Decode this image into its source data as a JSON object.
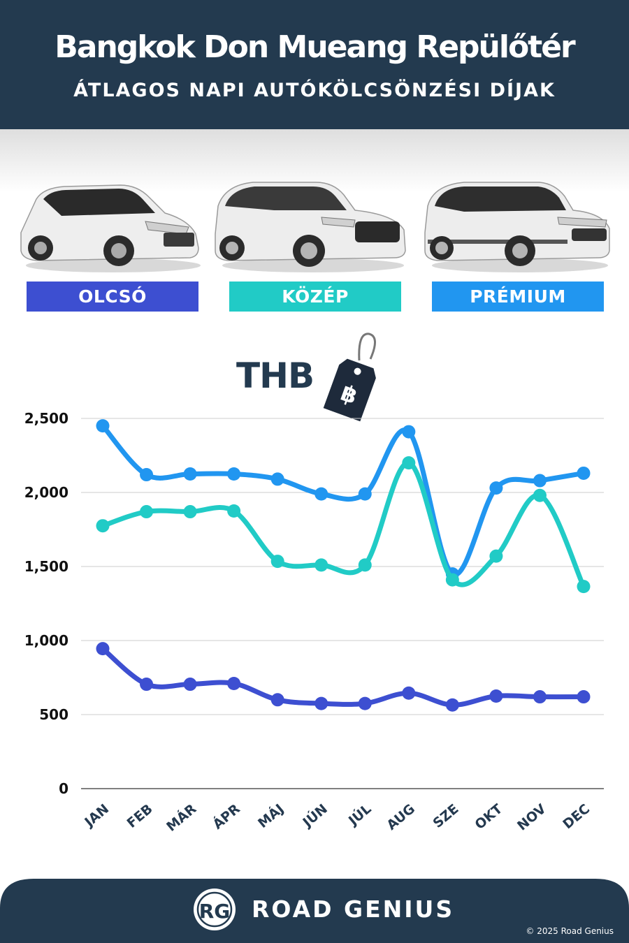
{
  "header": {
    "title": "Bangkok Don Mueang Repülőtér",
    "subtitle": "ÁTLAGOS NAPI AUTÓKÖLCSÖNZÉSI DÍJAK"
  },
  "categories": [
    {
      "label": "OLCSÓ",
      "color": "#3d4fd1"
    },
    {
      "label": "KÖZÉP",
      "color": "#21cbc6"
    },
    {
      "label": "PRÉMIUM",
      "color": "#2196f0"
    }
  ],
  "currency_label": "THB",
  "currency_symbol": "฿",
  "chart_data": {
    "type": "line",
    "categories": [
      "JAN",
      "FEB",
      "MÁR",
      "ÁPR",
      "MÁJ",
      "JÚN",
      "JÚL",
      "AUG",
      "SZE",
      "OKT",
      "NOV",
      "DEC"
    ],
    "series": [
      {
        "name": "PRÉMIUM",
        "color": "#2196f0",
        "values": [
          2450,
          2120,
          2125,
          2125,
          2090,
          1990,
          1990,
          2410,
          1450,
          2030,
          2080,
          2130
        ]
      },
      {
        "name": "KÖZÉP",
        "color": "#21cbc6",
        "values": [
          1775,
          1870,
          1870,
          1875,
          1535,
          1510,
          1510,
          2200,
          1410,
          1570,
          1980,
          1365
        ]
      },
      {
        "name": "OLCSÓ",
        "color": "#3d4fd1",
        "values": [
          945,
          705,
          705,
          710,
          600,
          575,
          575,
          645,
          565,
          625,
          620,
          620
        ]
      }
    ],
    "yticks": [
      "0",
      "500",
      "1,000",
      "1,500",
      "2,000",
      "2,500"
    ],
    "ylim": [
      0,
      2500
    ],
    "grid": true
  },
  "footer": {
    "logo": "RG",
    "brand": "ROAD GENIUS",
    "copyright": "© 2025 Road Genius"
  }
}
